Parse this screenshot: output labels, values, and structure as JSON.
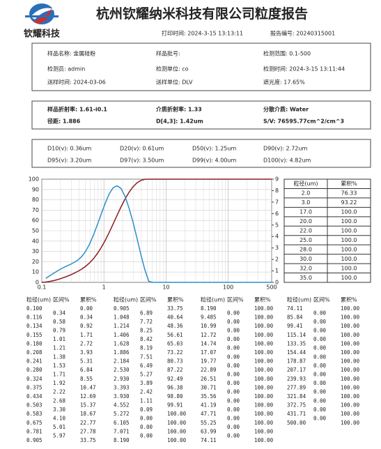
{
  "header": {
    "logo_text": "钦耀科技",
    "title": "杭州钦耀纳米科技有限公司粒度报告",
    "print_time": "打印时间: 2024-3-15 13:13:11",
    "report_no": "报告编号: 20240315001"
  },
  "sample_info": [
    [
      "样品名称: 金属硅粉",
      "样品批号:",
      "检测范围: 0.1-500"
    ],
    [
      "检测员: admin",
      "检测单位: co",
      "检测时间: 2024-3-15 13:11:44"
    ],
    [
      "送样时间: 2024-03-06",
      "送样单位: DLV",
      "遮光度: 17.65%"
    ]
  ],
  "optics": [
    [
      "样品折射率: 1.61-i0.1",
      "介质折射率: 1.33",
      "分散介质: Water"
    ],
    [
      "径距: 1.886",
      "D[4,3]: 1.42um",
      "S/V: 76595.77cm^2/cm^3"
    ]
  ],
  "diameters": [
    [
      "D10(v): 0.36um",
      "D20(v): 0.61um",
      "D50(v): 1.25um",
      "D90(v): 2.72um"
    ],
    [
      "D95(v): 3.20um",
      "D97(v): 3.50um",
      "D99(v): 4.00um",
      "D100(v): 4.82um"
    ]
  ],
  "chart_data": {
    "type": "line",
    "log_x": true,
    "grid": true,
    "xlim": [
      0.1,
      500
    ],
    "xticks": [
      0.1,
      1,
      10,
      100,
      500
    ],
    "ylim": [
      0,
      100
    ],
    "yticks": [
      0,
      10,
      20,
      30,
      40,
      50,
      60,
      70,
      80,
      90,
      100
    ],
    "y2lim": [
      0,
      9
    ],
    "y2ticks": [
      0,
      1,
      2,
      3,
      4,
      5,
      6,
      7,
      8,
      9
    ],
    "x": [
      0.1,
      0.116,
      0.134,
      0.155,
      0.18,
      0.208,
      0.241,
      0.28,
      0.324,
      0.375,
      0.434,
      0.503,
      0.583,
      0.675,
      0.781,
      0.905,
      1.048,
      1.214,
      1.406,
      1.628,
      1.886,
      2.184,
      2.53,
      2.93,
      3.393,
      3.93,
      4.552,
      5.272,
      6.105,
      7.071,
      8.19,
      9.485,
      10.99,
      12.72,
      14.74,
      17.07,
      19.77,
      22.89,
      26.51,
      30.71,
      35.56,
      41.19,
      47.71,
      55.25,
      63.99,
      74.11,
      85.84,
      99.41,
      115.14,
      133.35,
      154.44,
      178.87,
      207.17,
      239.93,
      277.89,
      321.84,
      372.75,
      431.71,
      500
    ],
    "series": [
      {
        "name": "累积%",
        "color": "#8b1c1c",
        "values": [
          0,
          0.34,
          0.92,
          1.71,
          2.72,
          3.93,
          5.31,
          6.84,
          8.55,
          10.47,
          12.69,
          15.37,
          18.67,
          22.77,
          27.78,
          33.75,
          40.64,
          48.36,
          56.61,
          65.03,
          73.22,
          80.73,
          87.22,
          92.49,
          96.38,
          98.8,
          99.91,
          100,
          100,
          100,
          100,
          100,
          100,
          100,
          100,
          100,
          100,
          100,
          100,
          100,
          100,
          100,
          100,
          100,
          100,
          100,
          100,
          100,
          100,
          100,
          100,
          100,
          100,
          100,
          100,
          100,
          100,
          100,
          100
        ]
      },
      {
        "name": "区间%",
        "color": "#2b8fc8",
        "axis": "y2",
        "values": [
          null,
          0.34,
          0.58,
          0.79,
          1.01,
          1.21,
          1.38,
          1.53,
          1.71,
          1.92,
          2.22,
          2.68,
          3.3,
          4.1,
          5.01,
          5.97,
          6.89,
          7.72,
          8.25,
          8.42,
          8.19,
          7.51,
          6.49,
          5.27,
          3.89,
          2.42,
          1.11,
          0.09,
          0,
          0,
          0,
          0,
          0,
          0,
          0,
          0,
          0,
          0,
          0,
          0,
          0,
          0,
          0,
          0,
          0,
          0,
          0,
          0,
          0,
          0,
          0,
          0,
          0,
          0,
          0,
          0,
          0,
          0,
          0
        ]
      }
    ]
  },
  "lookup_table": {
    "header": [
      "粒径(um)",
      "累积%"
    ],
    "rows": [
      [
        "2.0",
        "76.33"
      ],
      [
        "3.0",
        "93.22"
      ],
      [
        "17.0",
        "100.0"
      ],
      [
        "20.0",
        "100.0"
      ],
      [
        "22.0",
        "100.0"
      ],
      [
        "25.0",
        "100.0"
      ],
      [
        "28.0",
        "100.0"
      ],
      [
        "30.0",
        "100.0"
      ],
      [
        "32.0",
        "100.0"
      ],
      [
        "35.0",
        "100.0"
      ]
    ]
  },
  "distribution_table": {
    "header": [
      "粒径(um)",
      "区间%",
      "累积%"
    ],
    "groups": [
      {
        "sizes": [
          "0.100",
          "0.116",
          "0.134",
          "0.155",
          "0.180",
          "0.208",
          "0.241",
          "0.280",
          "0.324",
          "0.375",
          "0.434",
          "0.503",
          "0.583",
          "0.675",
          "0.781",
          "0.905"
        ],
        "intervals": [
          "0.34",
          "0.58",
          "0.79",
          "1.01",
          "1.21",
          "1.38",
          "1.53",
          "1.71",
          "1.92",
          "2.22",
          "2.68",
          "3.30",
          "4.10",
          "5.01",
          "5.97"
        ],
        "cumulative": [
          "0.00",
          "0.34",
          "0.92",
          "1.71",
          "2.72",
          "3.93",
          "5.31",
          "6.84",
          "8.55",
          "10.47",
          "12.69",
          "15.37",
          "18.67",
          "22.77",
          "27.78",
          "33.75"
        ]
      },
      {
        "sizes": [
          "0.905",
          "1.048",
          "1.214",
          "1.406",
          "1.628",
          "1.886",
          "2.184",
          "2.530",
          "2.930",
          "3.393",
          "3.930",
          "4.552",
          "5.272",
          "6.105",
          "7.071",
          "8.190"
        ],
        "intervals": [
          "6.89",
          "7.72",
          "8.25",
          "8.42",
          "8.19",
          "7.51",
          "6.49",
          "5.27",
          "3.89",
          "2.42",
          "1.11",
          "0.09",
          "0.00",
          "0.00",
          "0.00"
        ],
        "cumulative": [
          "33.75",
          "40.64",
          "48.36",
          "56.61",
          "65.03",
          "73.22",
          "80.73",
          "87.22",
          "92.49",
          "96.38",
          "98.80",
          "99.91",
          "100.00",
          "100.00",
          "100.00",
          "100.00"
        ]
      },
      {
        "sizes": [
          "8.190",
          "9.485",
          "10.99",
          "12.72",
          "14.74",
          "17.07",
          "19.77",
          "22.89",
          "26.51",
          "30.71",
          "35.56",
          "41.19",
          "47.71",
          "55.25",
          "63.99",
          "74.11"
        ],
        "intervals": [
          "0.00",
          "0.00",
          "0.00",
          "0.00",
          "0.00",
          "0.00",
          "0.00",
          "0.00",
          "0.00",
          "0.00",
          "0.00",
          "0.00",
          "0.00",
          "0.00",
          "0.00"
        ],
        "cumulative": [
          "100.00",
          "100.00",
          "100.00",
          "100.00",
          "100.00",
          "100.00",
          "100.00",
          "100.00",
          "100.00",
          "100.00",
          "100.00",
          "100.00",
          "100.00",
          "100.00",
          "100.00",
          "100.00"
        ]
      },
      {
        "sizes": [
          "74.11",
          "85.84",
          "99.41",
          "115.14",
          "133.35",
          "154.44",
          "178.87",
          "207.17",
          "239.93",
          "277.89",
          "321.84",
          "372.75",
          "431.71",
          "500.00"
        ],
        "intervals": [
          "0.00",
          "0.00",
          "0.00",
          "0.00",
          "0.00",
          "0.00",
          "0.00",
          "0.00",
          "0.00",
          "0.00",
          "0.00",
          "0.00",
          "0.00"
        ],
        "cumulative": [
          "100.00",
          "100.00",
          "100.00",
          "100.00",
          "100.00",
          "100.00",
          "100.00",
          "100.00",
          "100.00",
          "100.00",
          "100.00",
          "100.00",
          "100.00",
          "100.00"
        ]
      }
    ]
  }
}
